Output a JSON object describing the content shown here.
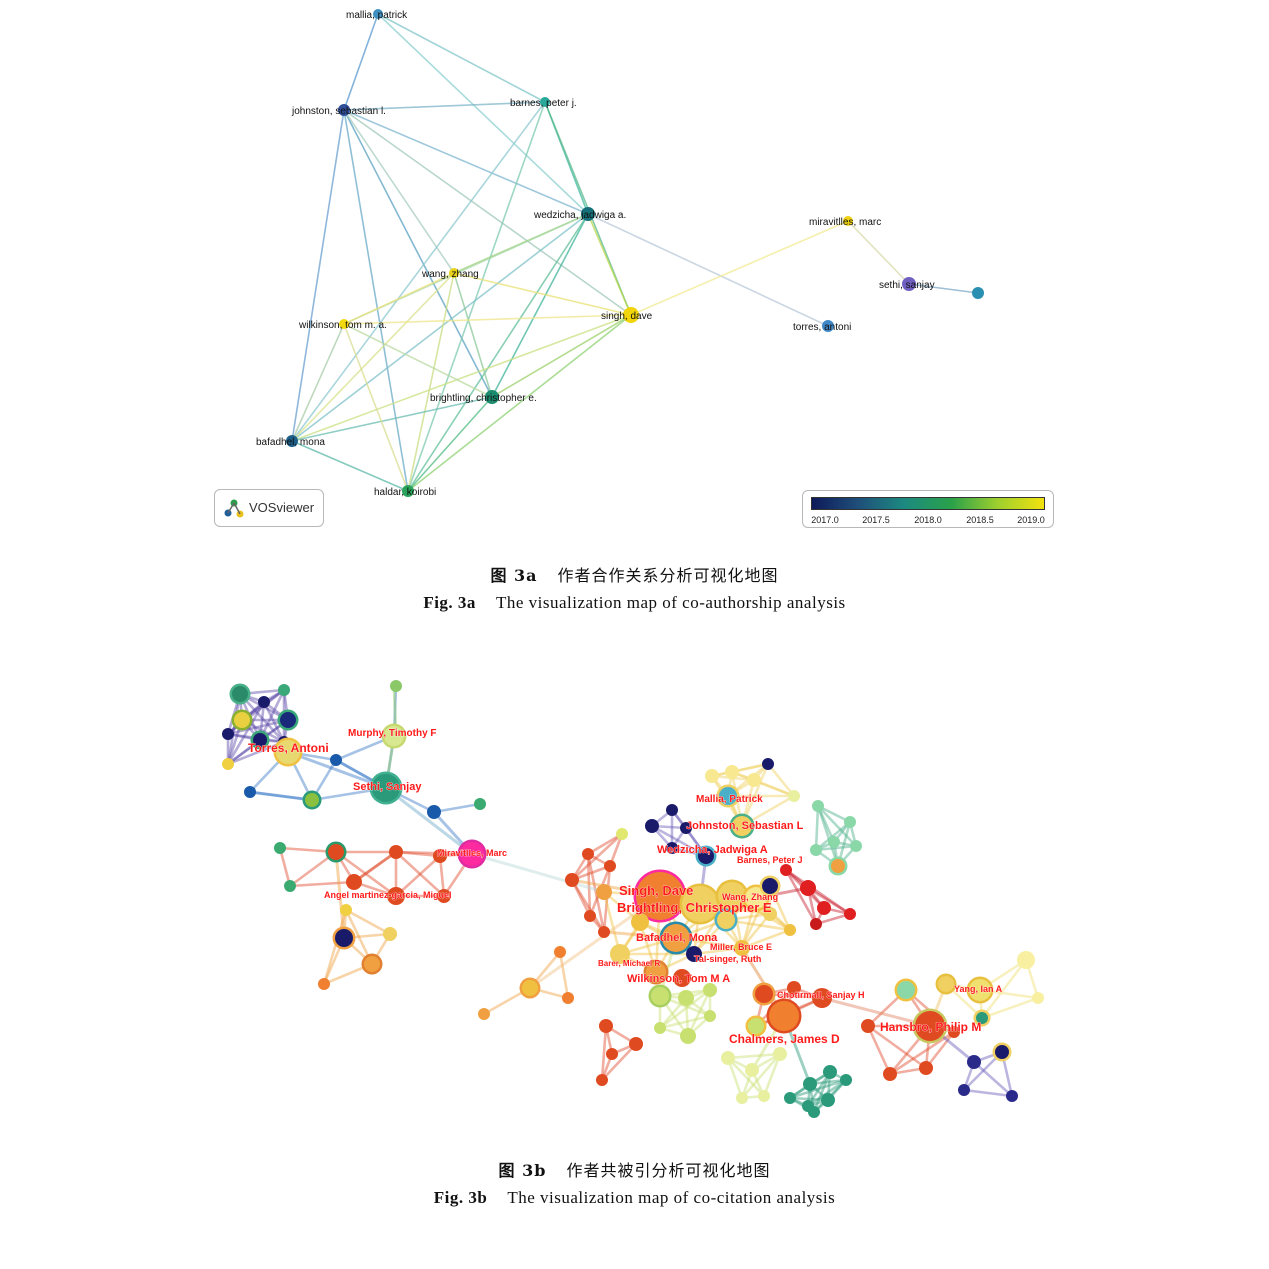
{
  "fig_a": {
    "caption_cn_label": "图 3a",
    "caption_cn_text": "作者合作关系分析可视化地图",
    "caption_en_label": "Fig. 3a",
    "caption_en_text": "The visualization map of co-authorship analysis",
    "logo_text": "VOSviewer",
    "legend": {
      "ticks": [
        "2017.0",
        "2017.5",
        "2018.0",
        "2018.5",
        "2019.0"
      ],
      "colors": [
        "#0d1a5a",
        "#1f4f7a",
        "#1c8a80",
        "#2aa14a",
        "#9ecf2e",
        "#f2e20f"
      ]
    },
    "nodes": [
      {
        "id": "mallia",
        "label": "mallia, patrick",
        "color": "#3f8fbf"
      },
      {
        "id": "johnston",
        "label": "johnston, sebastian l.",
        "color": "#2f4f9a"
      },
      {
        "id": "barnes",
        "label": "barnes, peter j.",
        "color": "#2aa89a"
      },
      {
        "id": "wedzicha",
        "label": "wedzicha, jadwiga a.",
        "color": "#16707a"
      },
      {
        "id": "miravitlles",
        "label": "miravitlles, marc",
        "color": "#f0d210"
      },
      {
        "id": "wang",
        "label": "wang, zhang",
        "color": "#e8d21a"
      },
      {
        "id": "sethi",
        "label": "sethi, sanjay",
        "color": "#6e5fc0"
      },
      {
        "id": "unlabeled",
        "label": "",
        "color": "#2a8fb0"
      },
      {
        "id": "singh",
        "label": "singh, dave",
        "color": "#f2d40a"
      },
      {
        "id": "wilkinson",
        "label": "wilkinson, tom m. a.",
        "color": "#f2d80e"
      },
      {
        "id": "torres",
        "label": "torres, antoni",
        "color": "#3f88c8"
      },
      {
        "id": "brightling",
        "label": "brightling, christopher e.",
        "color": "#1b8c6e"
      },
      {
        "id": "bafadhel",
        "label": "bafadhel, mona",
        "color": "#1e5f8a"
      },
      {
        "id": "haldar",
        "label": "haldar, koirobi",
        "color": "#2aa35a"
      }
    ],
    "edges": [
      [
        "mallia",
        "johnston",
        "#5a9acf"
      ],
      [
        "mallia",
        "barnes",
        "#7fc4c8"
      ],
      [
        "mallia",
        "wedzicha",
        "#8ccfd0"
      ],
      [
        "johnston",
        "barnes",
        "#7fb6c8"
      ],
      [
        "johnston",
        "wedzicha",
        "#7fb6d0"
      ],
      [
        "johnston",
        "brightling",
        "#5aa0c0"
      ],
      [
        "johnston",
        "haldar",
        "#6aa9c8"
      ],
      [
        "johnston",
        "bafadhel",
        "#6a9fd0"
      ],
      [
        "johnston",
        "singh",
        "#a0c8b8"
      ],
      [
        "johnston",
        "wang",
        "#a8ccc0"
      ],
      [
        "barnes",
        "wedzicha",
        "#3fb8a0"
      ],
      [
        "barnes",
        "singh",
        "#58b88a"
      ],
      [
        "barnes",
        "bafadhel",
        "#8cc8d0"
      ],
      [
        "barnes",
        "haldar",
        "#7ccab0"
      ],
      [
        "wedzicha",
        "singh",
        "#b8d84a"
      ],
      [
        "wedzicha",
        "brightling",
        "#3fb49a"
      ],
      [
        "wedzicha",
        "haldar",
        "#5fbf9a"
      ],
      [
        "wedzicha",
        "wang",
        "#9fd07a"
      ],
      [
        "wedzicha",
        "wilkinson",
        "#a8d8a8"
      ],
      [
        "wedzicha",
        "bafadhel",
        "#7cc0c8"
      ],
      [
        "wedzicha",
        "torres",
        "#b8c8d8"
      ],
      [
        "wang",
        "singh",
        "#e8e070"
      ],
      [
        "wang",
        "wilkinson",
        "#ece07a"
      ],
      [
        "wang",
        "brightling",
        "#8cc898"
      ],
      [
        "wang",
        "haldar",
        "#c8dc80"
      ],
      [
        "wang",
        "bafadhel",
        "#d8e08a"
      ],
      [
        "singh",
        "wilkinson",
        "#efe58c"
      ],
      [
        "singh",
        "brightling",
        "#9cd06a"
      ],
      [
        "singh",
        "haldar",
        "#8cd070"
      ],
      [
        "singh",
        "bafadhel",
        "#c8e080"
      ],
      [
        "singh",
        "miravitlles",
        "#f2ea90"
      ],
      [
        "miravitlles",
        "sethi",
        "#d8d8a8"
      ],
      [
        "sethi",
        "unlabeled",
        "#7ea8c8"
      ],
      [
        "brightling",
        "bafadhel",
        "#6bbcb0"
      ],
      [
        "brightling",
        "haldar",
        "#4fbc80"
      ],
      [
        "brightling",
        "wilkinson",
        "#b8d8a0"
      ],
      [
        "bafadhel",
        "haldar",
        "#5ab8a8"
      ],
      [
        "bafadhel",
        "wilkinson",
        "#a8cca8"
      ],
      [
        "wilkinson",
        "haldar",
        "#d8dc90"
      ]
    ]
  },
  "fig_b": {
    "caption_cn_label": "图 3b",
    "caption_cn_text": "作者共被引分析可视化地图",
    "caption_en_label": "Fig. 3b",
    "caption_en_text": "The visualization map of co-citation analysis",
    "labels": [
      "Torres, Antoni",
      "Murphy, Timothy F",
      "Sethi, Sanjay",
      "Miravitlles, Marc",
      "Angel martinez-garcia, Miguel",
      "Mallia, Patrick",
      "Johnston, Sebastian L",
      "Wedzicha, Jadwiga A",
      "Barnes, Peter J",
      "Singh, Dave",
      "Wang, Zhang",
      "Brightling, Christopher E",
      "Bafadhel, Mona",
      "Miller, Bruce E",
      "Barer, Michael R",
      "Tal-singer, Ruth",
      "Wilkinson, Tom M A",
      "Chotirmall, Sanjay H",
      "Yang, Ian A",
      "Hansbro, Philip M",
      "Chalmers, James D"
    ],
    "label_color": "#ff1a1a"
  }
}
